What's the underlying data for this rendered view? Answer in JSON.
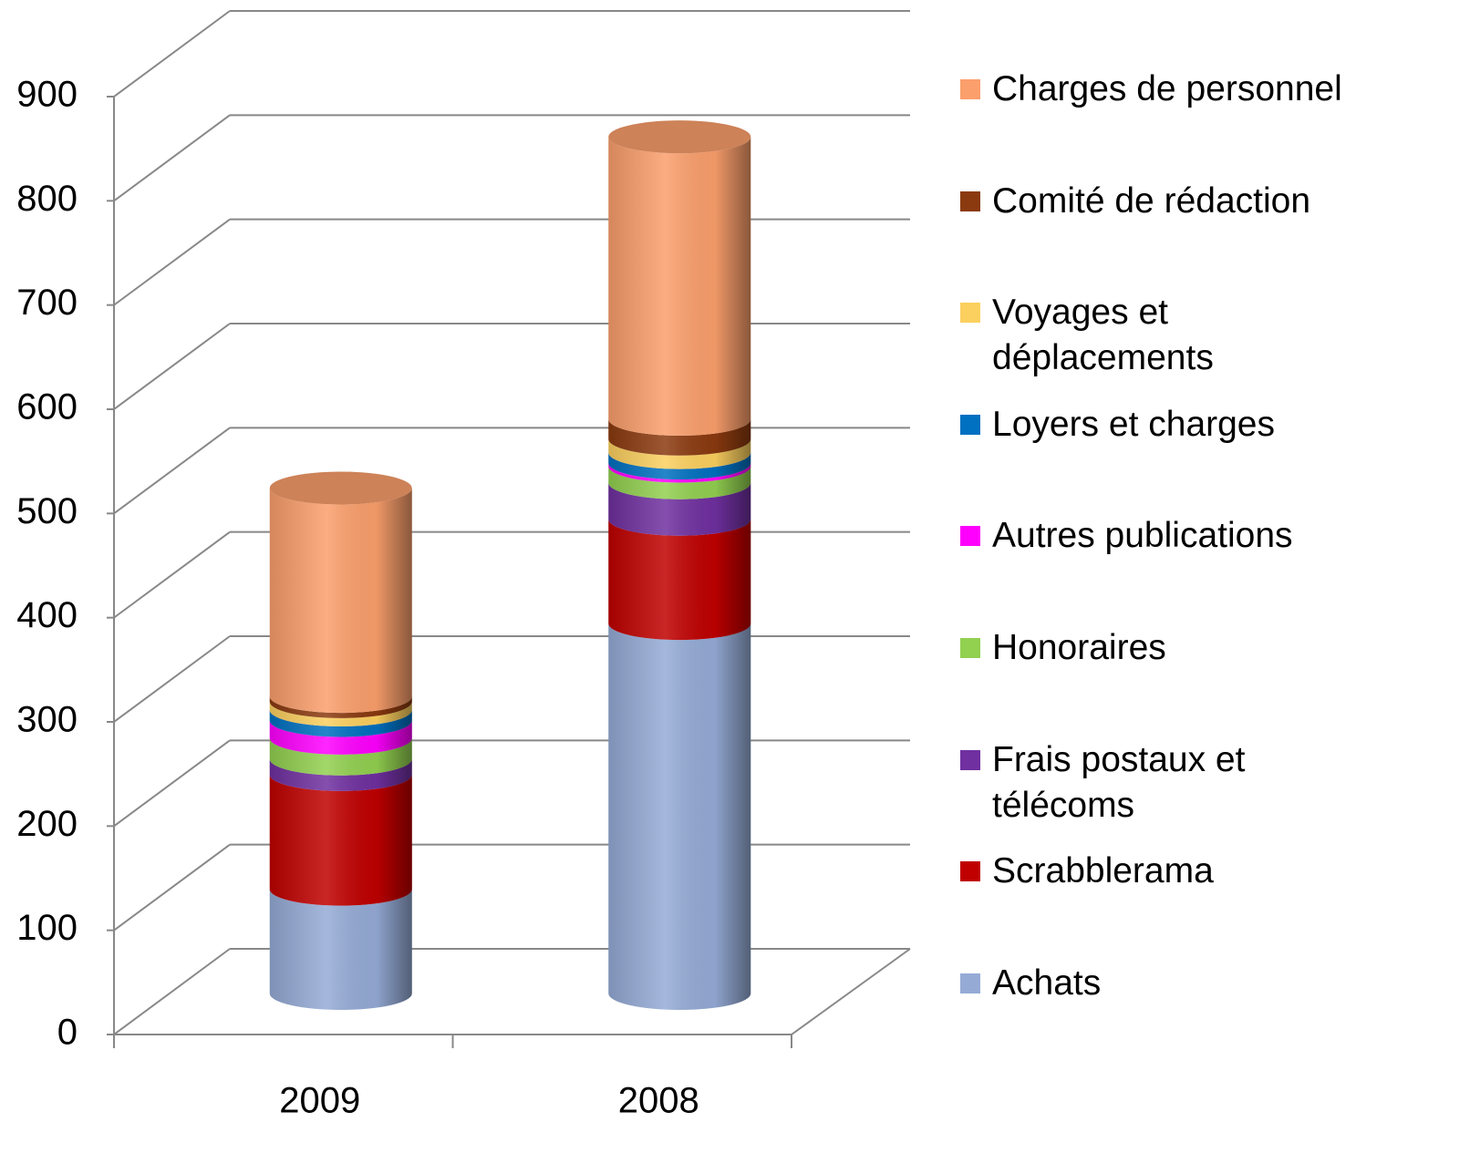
{
  "chart_data": {
    "type": "bar3d-stacked",
    "categories": [
      "2009",
      "2008"
    ],
    "series": [
      {
        "name": "Achats",
        "color": "#95abd6",
        "values": [
          100,
          355
        ]
      },
      {
        "name": "Scrabblerama",
        "color": "#c00000",
        "values": [
          110,
          100
        ]
      },
      {
        "name": "Frais postaux et télécoms",
        "color": "#7030a0",
        "values": [
          15,
          35
        ]
      },
      {
        "name": "Honoraires",
        "color": "#92d050",
        "values": [
          20,
          16
        ]
      },
      {
        "name": "Autres publications",
        "color": "#ff00ff",
        "values": [
          17,
          3
        ]
      },
      {
        "name": "Loyers et charges",
        "color": "#0070c0",
        "values": [
          10,
          10
        ]
      },
      {
        "name": "Voyages et déplacements",
        "color": "#fcd05f",
        "values": [
          8,
          13
        ]
      },
      {
        "name": "Comité de rédaction",
        "color": "#8b3a0f",
        "values": [
          5,
          19
        ]
      },
      {
        "name": "Charges de personnel",
        "color": "#fb9f6c",
        "values": [
          200,
          271
        ]
      }
    ],
    "ylim": [
      0,
      900
    ],
    "yticks": [
      0,
      100,
      200,
      300,
      400,
      500,
      600,
      700,
      800,
      900
    ],
    "grid": true,
    "legend": "right"
  }
}
